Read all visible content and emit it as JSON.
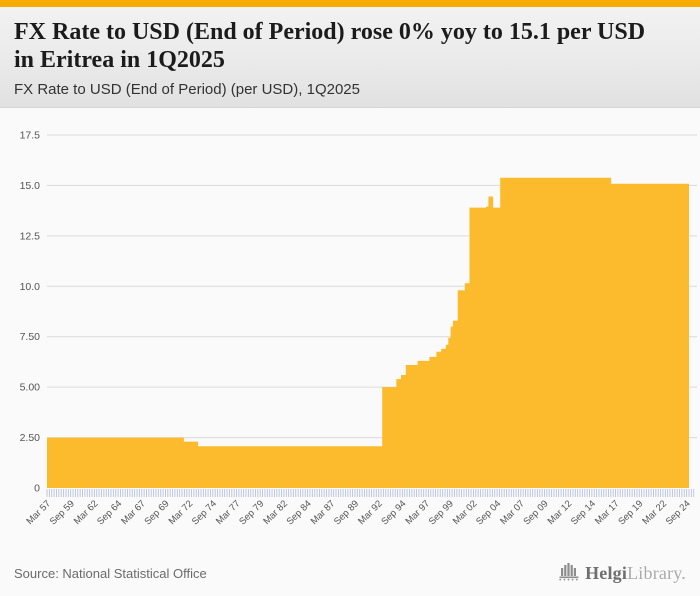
{
  "header": {
    "strip_color": "#F8AB00",
    "title": "FX Rate to USD (End of Period) rose 0% yoy to 15.1 per USD in Eritrea in 1Q2025",
    "subtitle": "FX Rate to USD (End of Period) (per USD), 1Q2025"
  },
  "chart_data": {
    "type": "area",
    "title": "FX Rate to USD (End of Period) (per USD), 1Q2025",
    "xlabel": "",
    "ylabel": "",
    "x_range_years": [
      1957.25,
      2025.25
    ],
    "ylim": [
      0,
      17.5
    ],
    "grid": true,
    "legend": false,
    "area_color": "#FBBB2D",
    "gridline_color": "#e6e6e6",
    "tick_comb_color": "#b7c2dc",
    "axis_text_color": "#555555",
    "y_ticks": [
      {
        "value": 0,
        "label": "0"
      },
      {
        "value": 2.5,
        "label": "2.50"
      },
      {
        "value": 5,
        "label": "5.00"
      },
      {
        "value": 7.5,
        "label": "7.50"
      },
      {
        "value": 10,
        "label": "10.0"
      },
      {
        "value": 12.5,
        "label": "12.5"
      },
      {
        "value": 15,
        "label": "15.0"
      },
      {
        "value": 17.5,
        "label": "17.5"
      }
    ],
    "x_tick_labels": [
      "Mar 57",
      "Sep 59",
      "Mar 62",
      "Sep 64",
      "Mar 67",
      "Sep 69",
      "Mar 72",
      "Sep 74",
      "Mar 77",
      "Sep 79",
      "Mar 82",
      "Sep 84",
      "Mar 87",
      "Sep 89",
      "Mar 92",
      "Sep 94",
      "Mar 97",
      "Sep 99",
      "Mar 02",
      "Sep 04",
      "Mar 07",
      "Sep 09",
      "Mar 12",
      "Sep 14",
      "Mar 17",
      "Sep 19",
      "Mar 22",
      "Sep 24"
    ],
    "x_minor_ticks_per_label": 10,
    "series": [
      {
        "name": "FX Rate to USD (End of Period) (per USD)",
        "interpolation": "step-after",
        "step_points": [
          [
            1957.25,
            2.5
          ],
          [
            1971.75,
            2.3
          ],
          [
            1973.25,
            2.07
          ],
          [
            1992.75,
            5.0
          ],
          [
            1994.25,
            5.4
          ],
          [
            1994.75,
            5.6
          ],
          [
            1995.25,
            6.1
          ],
          [
            1996.5,
            6.3
          ],
          [
            1997.75,
            6.5
          ],
          [
            1998.5,
            6.75
          ],
          [
            1999.0,
            6.9
          ],
          [
            1999.5,
            7.1
          ],
          [
            1999.75,
            7.45
          ],
          [
            2000.0,
            8.0
          ],
          [
            2000.25,
            8.3
          ],
          [
            2000.75,
            9.8
          ],
          [
            2001.5,
            10.15
          ],
          [
            2002.0,
            13.9
          ],
          [
            2003.75,
            13.95
          ],
          [
            2004.0,
            14.45
          ],
          [
            2004.5,
            13.9
          ],
          [
            2005.25,
            15.38
          ],
          [
            2017.0,
            15.08
          ],
          [
            2025.25,
            15.08
          ]
        ]
      }
    ],
    "latest_value": 15.1,
    "latest_period": "1Q2025",
    "yoy_change_pct": 0
  },
  "footer": {
    "source": "Source: National Statistical Office",
    "logo": {
      "icon": "organ-pipes-icon",
      "text_primary": "Helgi",
      "text_secondary": "Library."
    }
  }
}
